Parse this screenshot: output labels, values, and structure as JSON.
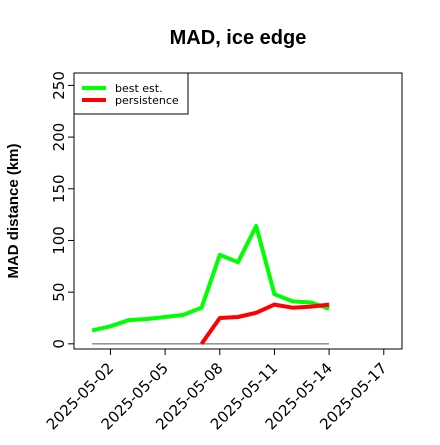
{
  "chart_data": {
    "type": "line",
    "title": "MAD, ice edge",
    "xlabel": "",
    "ylabel": "MAD distance (km)",
    "x": [
      "2025-05-01",
      "2025-05-02",
      "2025-05-03",
      "2025-05-04",
      "2025-05-05",
      "2025-05-06",
      "2025-05-07",
      "2025-05-08",
      "2025-05-09",
      "2025-05-10",
      "2025-05-11",
      "2025-05-12",
      "2025-05-13",
      "2025-05-14"
    ],
    "x_ticks": [
      "2025-05-02",
      "2025-05-05",
      "2025-05-08",
      "2025-05-11",
      "2025-05-14",
      "2025-05-17"
    ],
    "xlim": [
      "2025-04-30",
      "2025-05-18"
    ],
    "ylim": [
      -5,
      262
    ],
    "y_ticks": [
      0,
      50,
      100,
      150,
      200,
      250
    ],
    "series": [
      {
        "name": "best est.",
        "color": "#00ff00",
        "values": [
          13,
          17,
          23,
          24,
          26,
          28,
          35,
          86,
          79,
          114,
          48,
          41,
          40,
          34
        ]
      },
      {
        "name": "persistence",
        "color": "#ff0000",
        "values": [
          null,
          null,
          null,
          null,
          null,
          null,
          0,
          25,
          26,
          30,
          38,
          35,
          36,
          38
        ]
      }
    ],
    "baseline": {
      "y": 0,
      "color": "#555555"
    },
    "legend": "top-left",
    "grid": false
  }
}
